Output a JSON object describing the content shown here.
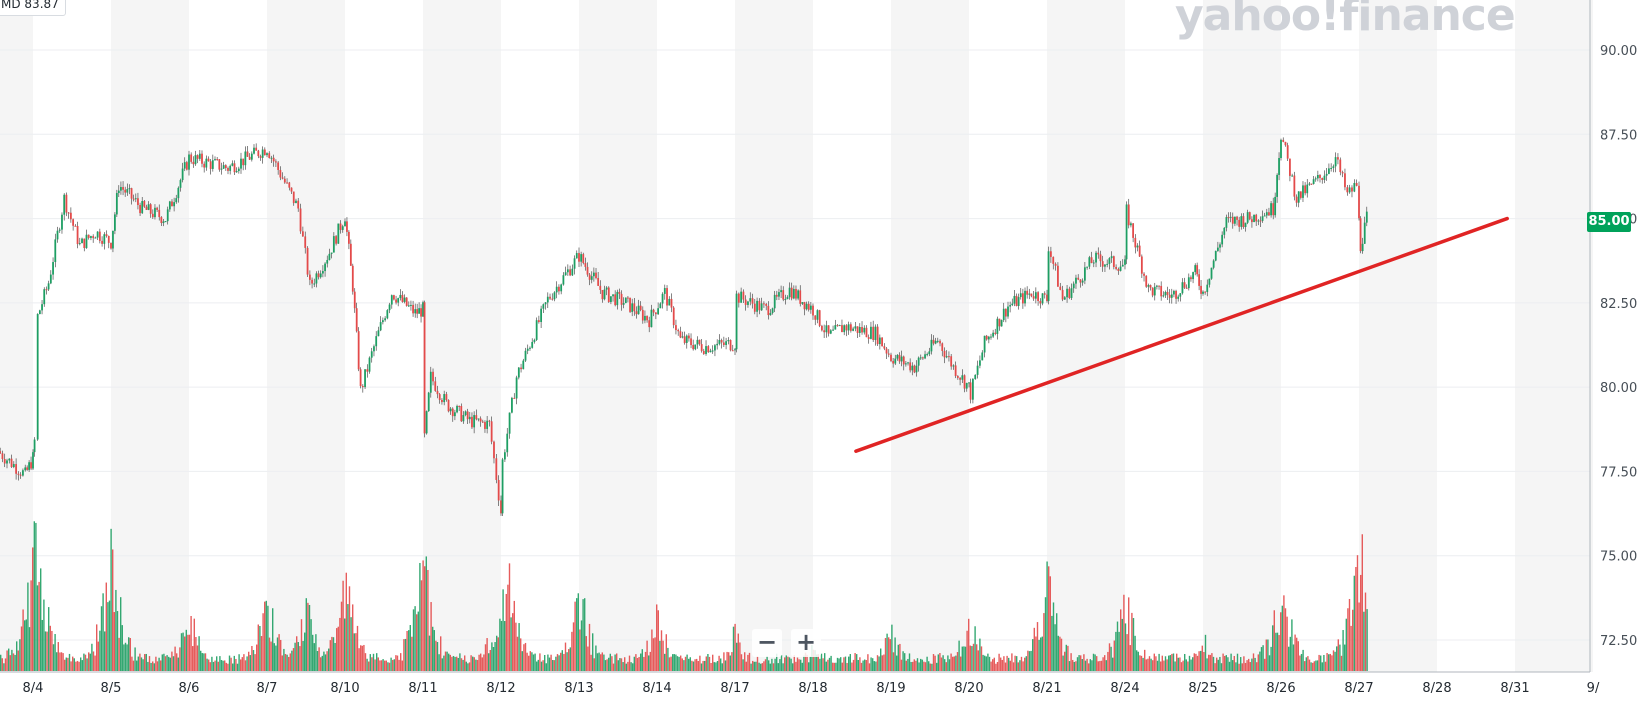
{
  "legend": {
    "symbol_prefix": "MD",
    "value": "83.87"
  },
  "watermark": {
    "text": "yahoo!finance"
  },
  "last_price": "85.00",
  "zoom": {
    "out_label": "−",
    "in_label": "+"
  },
  "colors": {
    "up": "#1e9e63",
    "down": "#e34a4a",
    "trend": "#e02424",
    "badge": "#00a25a"
  },
  "chart_data": {
    "type": "candlestick",
    "y_ticks": [
      "90.00",
      "87.50",
      "85.00",
      "82.50",
      "80.00",
      "77.50",
      "75.00",
      "72.50"
    ],
    "ylim": [
      71.6,
      91.3
    ],
    "x_labels": [
      "8/4",
      "8/5",
      "8/6",
      "8/7",
      "8/10",
      "8/11",
      "8/12",
      "8/13",
      "8/14",
      "8/17",
      "8/18",
      "8/19",
      "8/20",
      "8/21",
      "8/24",
      "8/25",
      "8/26",
      "8/27",
      "8/28",
      "8/31",
      "9/"
    ],
    "price_path": [
      [
        -0.45,
        78.1
      ],
      [
        -0.1,
        77.4
      ],
      [
        0.0,
        77.9
      ],
      [
        0.02,
        78.4
      ],
      [
        0.06,
        82.1
      ],
      [
        0.2,
        83.1
      ],
      [
        0.4,
        85.6
      ],
      [
        0.6,
        84.2
      ],
      [
        0.8,
        84.6
      ],
      [
        1.0,
        84.3
      ],
      [
        1.1,
        86.0
      ],
      [
        1.4,
        85.3
      ],
      [
        1.7,
        85.0
      ],
      [
        2.0,
        86.8
      ],
      [
        2.5,
        86.5
      ],
      [
        3.0,
        87.1
      ],
      [
        3.2,
        86.2
      ],
      [
        3.4,
        85.3
      ],
      [
        3.55,
        83.0
      ],
      [
        3.8,
        84.0
      ],
      [
        4.0,
        85.1
      ],
      [
        4.1,
        83.0
      ],
      [
        4.2,
        79.9
      ],
      [
        4.4,
        81.4
      ],
      [
        4.6,
        82.8
      ],
      [
        4.9,
        82.2
      ],
      [
        5.0,
        82.3
      ],
      [
        5.02,
        78.5
      ],
      [
        5.1,
        80.3
      ],
      [
        5.3,
        79.5
      ],
      [
        5.6,
        79.0
      ],
      [
        5.85,
        78.9
      ],
      [
        6.0,
        76.3
      ],
      [
        6.02,
        77.8
      ],
      [
        6.2,
        80.3
      ],
      [
        6.6,
        82.6
      ],
      [
        7.0,
        83.9
      ],
      [
        7.3,
        82.8
      ],
      [
        7.6,
        82.5
      ],
      [
        7.9,
        82.0
      ],
      [
        8.1,
        82.8
      ],
      [
        8.3,
        81.4
      ],
      [
        8.6,
        81.2
      ],
      [
        9.0,
        81.3
      ],
      [
        9.02,
        82.7
      ],
      [
        9.4,
        82.3
      ],
      [
        9.7,
        82.9
      ],
      [
        10.0,
        82.3
      ],
      [
        10.2,
        81.5
      ],
      [
        10.4,
        81.8
      ],
      [
        10.8,
        81.6
      ],
      [
        11.0,
        80.9
      ],
      [
        11.3,
        80.6
      ],
      [
        11.6,
        81.4
      ],
      [
        11.8,
        80.6
      ],
      [
        12.0,
        80.0
      ],
      [
        12.02,
        79.8
      ],
      [
        12.2,
        81.3
      ],
      [
        12.5,
        82.4
      ],
      [
        12.8,
        82.8
      ],
      [
        13.0,
        82.6
      ],
      [
        13.02,
        84.2
      ],
      [
        13.2,
        82.6
      ],
      [
        13.6,
        83.8
      ],
      [
        14.0,
        83.6
      ],
      [
        14.02,
        85.2
      ],
      [
        14.3,
        82.9
      ],
      [
        14.6,
        82.7
      ],
      [
        14.9,
        83.4
      ],
      [
        15.0,
        82.8
      ],
      [
        15.3,
        84.9
      ],
      [
        15.6,
        85.0
      ],
      [
        15.9,
        85.3
      ],
      [
        16.0,
        87.5
      ],
      [
        16.2,
        85.6
      ],
      [
        16.5,
        86.2
      ],
      [
        16.7,
        86.8
      ],
      [
        16.85,
        85.7
      ],
      [
        16.97,
        86.0
      ],
      [
        17.0,
        84.9
      ],
      [
        17.02,
        84.2
      ],
      [
        17.1,
        85.0
      ]
    ],
    "trendline": {
      "start": [
        10.55,
        78.1
      ],
      "end": [
        18.9,
        85.0
      ]
    },
    "volume_spikes": [
      [
        0.02,
        1.0
      ],
      [
        0.1,
        0.5
      ],
      [
        1.0,
        0.85
      ],
      [
        2.0,
        0.45
      ],
      [
        3.0,
        0.57
      ],
      [
        3.5,
        0.46
      ],
      [
        4.0,
        0.66
      ],
      [
        5.0,
        0.83
      ],
      [
        6.0,
        0.66
      ],
      [
        6.1,
        0.6
      ],
      [
        7.0,
        0.6
      ],
      [
        8.0,
        0.4
      ],
      [
        9.0,
        0.3
      ],
      [
        10.0,
        0.2
      ],
      [
        11.0,
        0.3
      ],
      [
        12.0,
        0.42
      ],
      [
        13.0,
        0.68
      ],
      [
        14.0,
        0.55
      ],
      [
        15.0,
        0.26
      ],
      [
        16.0,
        0.63
      ],
      [
        17.0,
        0.97
      ]
    ]
  }
}
